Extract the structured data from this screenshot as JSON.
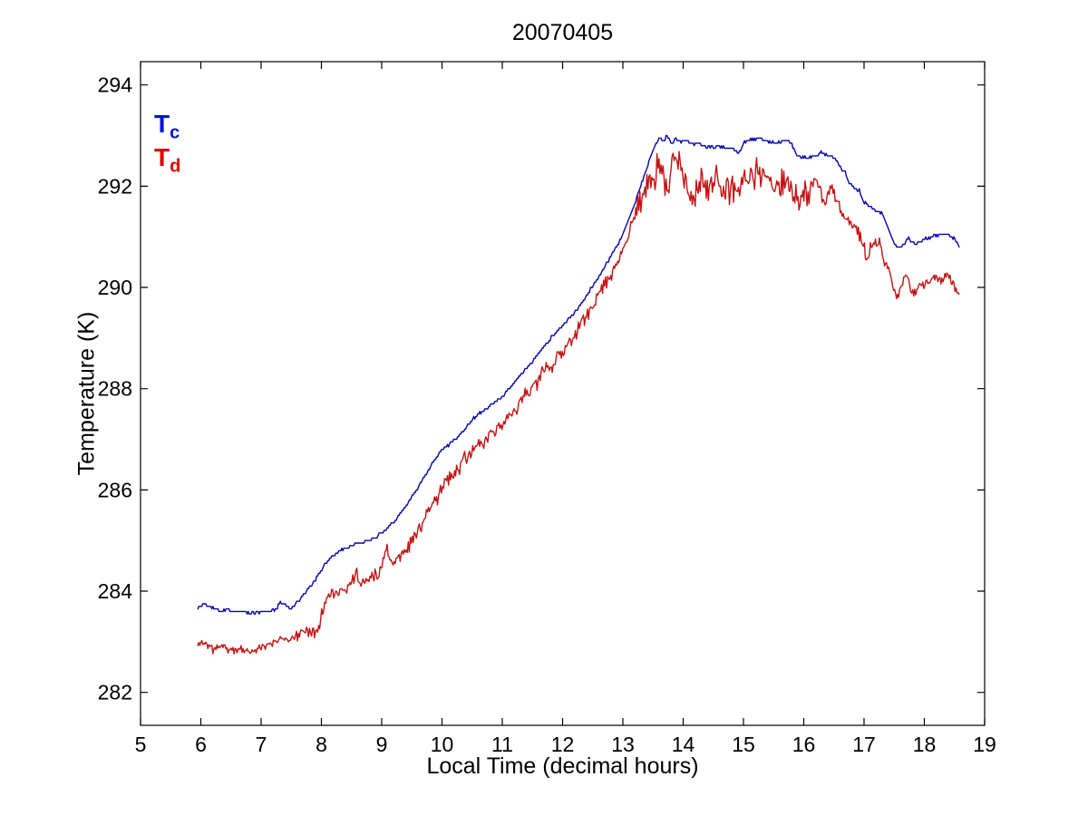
{
  "chart_data": {
    "type": "line",
    "title": "20070405",
    "xlabel": "Local Time (decimal hours)",
    "ylabel": "Temperature (K)",
    "xlim": [
      5,
      19
    ],
    "ylim": [
      281.35,
      294.46
    ],
    "xticks": [
      5,
      6,
      7,
      8,
      9,
      10,
      11,
      12,
      13,
      14,
      15,
      16,
      17,
      18,
      19
    ],
    "yticks": [
      282,
      284,
      286,
      288,
      290,
      292,
      294
    ],
    "grid": false,
    "legend_position": "top-left-inside",
    "axis_color": "#000000",
    "series": [
      {
        "name": "Tc",
        "legend_base": "T",
        "legend_sub": "c",
        "legend_color": "#0011dd",
        "color": "#0404ad",
        "quantize": 0.05,
        "noise": {
          "seed": 3,
          "step": 0.0167,
          "segments": [
            [
              5.9,
              18.6,
              0.018
            ]
          ]
        },
        "points": [
          [
            5.95,
            283.68
          ],
          [
            6.05,
            283.73
          ],
          [
            6.15,
            283.7
          ],
          [
            6.3,
            283.62
          ],
          [
            6.6,
            283.6
          ],
          [
            6.9,
            283.58
          ],
          [
            7.1,
            283.61
          ],
          [
            7.25,
            283.64
          ],
          [
            7.33,
            283.79
          ],
          [
            7.4,
            283.72
          ],
          [
            7.47,
            283.66
          ],
          [
            7.55,
            283.71
          ],
          [
            7.7,
            283.92
          ],
          [
            7.85,
            284.15
          ],
          [
            8.0,
            284.42
          ],
          [
            8.15,
            284.67
          ],
          [
            8.3,
            284.8
          ],
          [
            8.5,
            284.9
          ],
          [
            8.7,
            284.98
          ],
          [
            8.9,
            285.06
          ],
          [
            9.0,
            285.15
          ],
          [
            9.2,
            285.36
          ],
          [
            9.4,
            285.68
          ],
          [
            9.6,
            286.05
          ],
          [
            9.8,
            286.45
          ],
          [
            10.0,
            286.8
          ],
          [
            10.2,
            286.97
          ],
          [
            10.4,
            287.25
          ],
          [
            10.6,
            287.5
          ],
          [
            10.8,
            287.66
          ],
          [
            11.0,
            287.85
          ],
          [
            11.2,
            288.12
          ],
          [
            11.4,
            288.4
          ],
          [
            11.6,
            288.7
          ],
          [
            11.8,
            289.0
          ],
          [
            12.0,
            289.25
          ],
          [
            12.2,
            289.5
          ],
          [
            12.4,
            289.85
          ],
          [
            12.6,
            290.2
          ],
          [
            12.8,
            290.6
          ],
          [
            13.0,
            291.05
          ],
          [
            13.15,
            291.5
          ],
          [
            13.3,
            292.0
          ],
          [
            13.45,
            292.55
          ],
          [
            13.55,
            292.85
          ],
          [
            13.62,
            292.96
          ],
          [
            13.68,
            292.88
          ],
          [
            13.73,
            293.0
          ],
          [
            13.8,
            292.85
          ],
          [
            13.88,
            292.95
          ],
          [
            13.95,
            292.87
          ],
          [
            14.05,
            292.9
          ],
          [
            14.15,
            292.82
          ],
          [
            14.25,
            292.86
          ],
          [
            14.4,
            292.76
          ],
          [
            14.6,
            292.79
          ],
          [
            14.8,
            292.76
          ],
          [
            14.93,
            292.66
          ],
          [
            15.0,
            292.85
          ],
          [
            15.1,
            292.92
          ],
          [
            15.25,
            292.95
          ],
          [
            15.4,
            292.88
          ],
          [
            15.55,
            292.86
          ],
          [
            15.7,
            292.9
          ],
          [
            15.8,
            292.84
          ],
          [
            15.88,
            292.6
          ],
          [
            16.0,
            292.56
          ],
          [
            16.15,
            292.57
          ],
          [
            16.28,
            292.67
          ],
          [
            16.4,
            292.6
          ],
          [
            16.52,
            292.55
          ],
          [
            16.6,
            292.38
          ],
          [
            16.68,
            292.3
          ],
          [
            16.75,
            292.08
          ],
          [
            16.85,
            291.95
          ],
          [
            16.92,
            291.9
          ],
          [
            17.0,
            291.68
          ],
          [
            17.1,
            291.62
          ],
          [
            17.2,
            291.5
          ],
          [
            17.3,
            291.47
          ],
          [
            17.38,
            291.2
          ],
          [
            17.45,
            291.0
          ],
          [
            17.52,
            290.85
          ],
          [
            17.58,
            290.78
          ],
          [
            17.65,
            290.82
          ],
          [
            17.7,
            290.93
          ],
          [
            17.75,
            290.97
          ],
          [
            17.82,
            290.88
          ],
          [
            17.88,
            290.86
          ],
          [
            17.95,
            290.93
          ],
          [
            18.05,
            290.97
          ],
          [
            18.15,
            291.02
          ],
          [
            18.25,
            291.05
          ],
          [
            18.35,
            291.05
          ],
          [
            18.45,
            291.0
          ],
          [
            18.52,
            290.94
          ],
          [
            18.58,
            290.8
          ]
        ]
      },
      {
        "name": "Td",
        "legend_base": "T",
        "legend_sub": "d",
        "legend_color": "#e00000",
        "color": "#c31414",
        "quantize": 0,
        "noise": {
          "seed": 11,
          "step": 0.0167,
          "segments": [
            [
              5.9,
              7.5,
              0.06
            ],
            [
              7.5,
              9.3,
              0.09
            ],
            [
              9.3,
              13.2,
              0.11
            ],
            [
              13.2,
              16.1,
              0.22
            ],
            [
              16.1,
              17.6,
              0.09
            ],
            [
              17.6,
              18.6,
              0.07
            ]
          ]
        },
        "points": [
          [
            5.95,
            282.92
          ],
          [
            6.02,
            283.02
          ],
          [
            6.1,
            282.95
          ],
          [
            6.2,
            282.85
          ],
          [
            6.35,
            282.92
          ],
          [
            6.5,
            282.82
          ],
          [
            6.65,
            282.86
          ],
          [
            6.8,
            282.8
          ],
          [
            6.95,
            282.88
          ],
          [
            7.1,
            282.92
          ],
          [
            7.22,
            283.0
          ],
          [
            7.35,
            283.08
          ],
          [
            7.48,
            283.02
          ],
          [
            7.6,
            283.12
          ],
          [
            7.75,
            283.25
          ],
          [
            7.88,
            283.18
          ],
          [
            7.95,
            283.3
          ],
          [
            8.05,
            283.75
          ],
          [
            8.15,
            283.95
          ],
          [
            8.25,
            284.0
          ],
          [
            8.38,
            284.05
          ],
          [
            8.5,
            284.15
          ],
          [
            8.57,
            284.38
          ],
          [
            8.65,
            284.15
          ],
          [
            8.8,
            284.28
          ],
          [
            8.95,
            284.35
          ],
          [
            9.08,
            284.85
          ],
          [
            9.18,
            284.55
          ],
          [
            9.3,
            284.7
          ],
          [
            9.45,
            284.9
          ],
          [
            9.6,
            285.2
          ],
          [
            9.75,
            285.5
          ],
          [
            9.9,
            285.8
          ],
          [
            10.05,
            286.15
          ],
          [
            10.2,
            286.35
          ],
          [
            10.35,
            286.6
          ],
          [
            10.5,
            286.75
          ],
          [
            10.65,
            286.9
          ],
          [
            10.8,
            287.1
          ],
          [
            10.95,
            287.22
          ],
          [
            11.1,
            287.45
          ],
          [
            11.25,
            287.65
          ],
          [
            11.4,
            287.92
          ],
          [
            11.55,
            288.12
          ],
          [
            11.7,
            288.35
          ],
          [
            11.85,
            288.52
          ],
          [
            12.0,
            288.72
          ],
          [
            12.15,
            288.95
          ],
          [
            12.3,
            289.25
          ],
          [
            12.45,
            289.55
          ],
          [
            12.6,
            289.85
          ],
          [
            12.75,
            290.15
          ],
          [
            12.9,
            290.45
          ],
          [
            13.05,
            290.9
          ],
          [
            13.2,
            291.45
          ],
          [
            13.35,
            291.9
          ],
          [
            13.5,
            292.15
          ],
          [
            13.6,
            292.42
          ],
          [
            13.7,
            291.9
          ],
          [
            13.8,
            292.3
          ],
          [
            13.9,
            292.62
          ],
          [
            14.0,
            292.15
          ],
          [
            14.1,
            291.88
          ],
          [
            14.2,
            291.8
          ],
          [
            14.3,
            292.1
          ],
          [
            14.4,
            291.95
          ],
          [
            14.55,
            292.25
          ],
          [
            14.7,
            291.8
          ],
          [
            14.85,
            291.95
          ],
          [
            15.0,
            292.05
          ],
          [
            15.15,
            292.2
          ],
          [
            15.28,
            292.33
          ],
          [
            15.4,
            292.1
          ],
          [
            15.55,
            291.95
          ],
          [
            15.7,
            292.05
          ],
          [
            15.85,
            291.78
          ],
          [
            15.97,
            291.68
          ],
          [
            16.05,
            291.85
          ],
          [
            16.13,
            292.0
          ],
          [
            16.2,
            292.17
          ],
          [
            16.28,
            291.85
          ],
          [
            16.35,
            291.64
          ],
          [
            16.42,
            291.9
          ],
          [
            16.48,
            292.0
          ],
          [
            16.55,
            291.72
          ],
          [
            16.65,
            291.46
          ],
          [
            16.75,
            291.3
          ],
          [
            16.85,
            291.2
          ],
          [
            16.95,
            290.95
          ],
          [
            17.05,
            290.55
          ],
          [
            17.12,
            290.85
          ],
          [
            17.2,
            290.83
          ],
          [
            17.27,
            290.88
          ],
          [
            17.33,
            290.5
          ],
          [
            17.4,
            290.35
          ],
          [
            17.5,
            289.95
          ],
          [
            17.57,
            289.82
          ],
          [
            17.65,
            290.18
          ],
          [
            17.7,
            290.3
          ],
          [
            17.77,
            289.94
          ],
          [
            17.85,
            289.86
          ],
          [
            17.93,
            290.1
          ],
          [
            18.0,
            290.03
          ],
          [
            18.1,
            290.18
          ],
          [
            18.2,
            290.22
          ],
          [
            18.28,
            290.12
          ],
          [
            18.38,
            290.28
          ],
          [
            18.45,
            290.15
          ],
          [
            18.52,
            289.98
          ],
          [
            18.58,
            289.82
          ]
        ]
      }
    ]
  }
}
